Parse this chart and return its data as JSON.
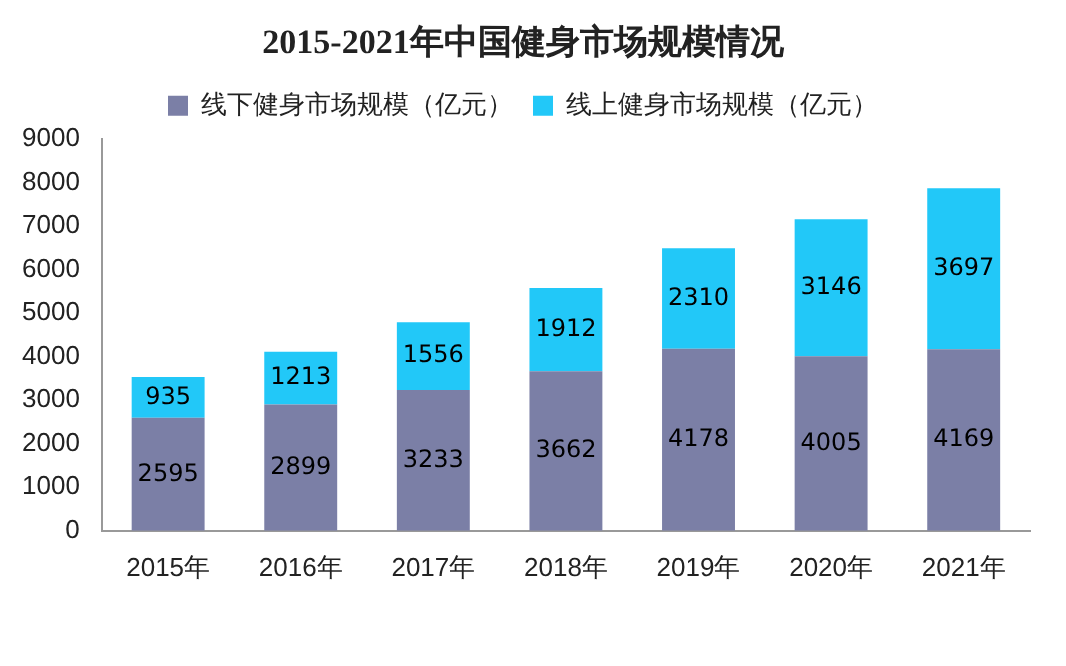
{
  "chart_data": {
    "type": "bar",
    "title": "2015-2021年中国健身市场规模情况",
    "categories": [
      "2015年",
      "2016年",
      "2017年",
      "2018年",
      "2019年",
      "2020年",
      "2021年"
    ],
    "stacked": true,
    "series": [
      {
        "name": "线下健身市场规模（亿元）",
        "color": "#7b7fa6",
        "values": [
          2595,
          2899,
          3233,
          3662,
          4178,
          4005,
          4169
        ]
      },
      {
        "name": "线上健身市场规模（亿元）",
        "color": "#22c8f8",
        "values": [
          935,
          1213,
          1556,
          1912,
          2310,
          3146,
          3697
        ]
      }
    ],
    "ylim": [
      0,
      9000
    ],
    "yticks": [
      0,
      1000,
      2000,
      3000,
      4000,
      5000,
      6000,
      7000,
      8000,
      9000
    ],
    "grid": false,
    "legend": "top",
    "data_labels": true
  }
}
